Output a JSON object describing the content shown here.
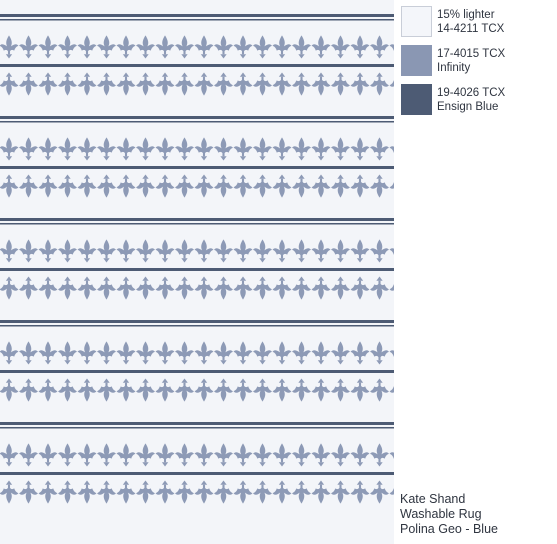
{
  "colors": {
    "background": "#f3f5f9",
    "motif": "#8d9ab6",
    "stripe": "#4d5b74",
    "swatch_border": "#c9ced8"
  },
  "swatches": [
    {
      "line1": "15% lighter",
      "line2": "14-4211 TCX",
      "color": "#f4f6fa"
    },
    {
      "line1": "17-4015 TCX",
      "line2": "Infinity",
      "color": "#8a97b3"
    },
    {
      "line1": "19-4026 TCX",
      "line2": "Ensign Blue",
      "color": "#4d5b74"
    }
  ],
  "caption": {
    "line1": "Kate Shand",
    "line2": "Washable Rug",
    "line3": "Polina Geo - Blue"
  }
}
